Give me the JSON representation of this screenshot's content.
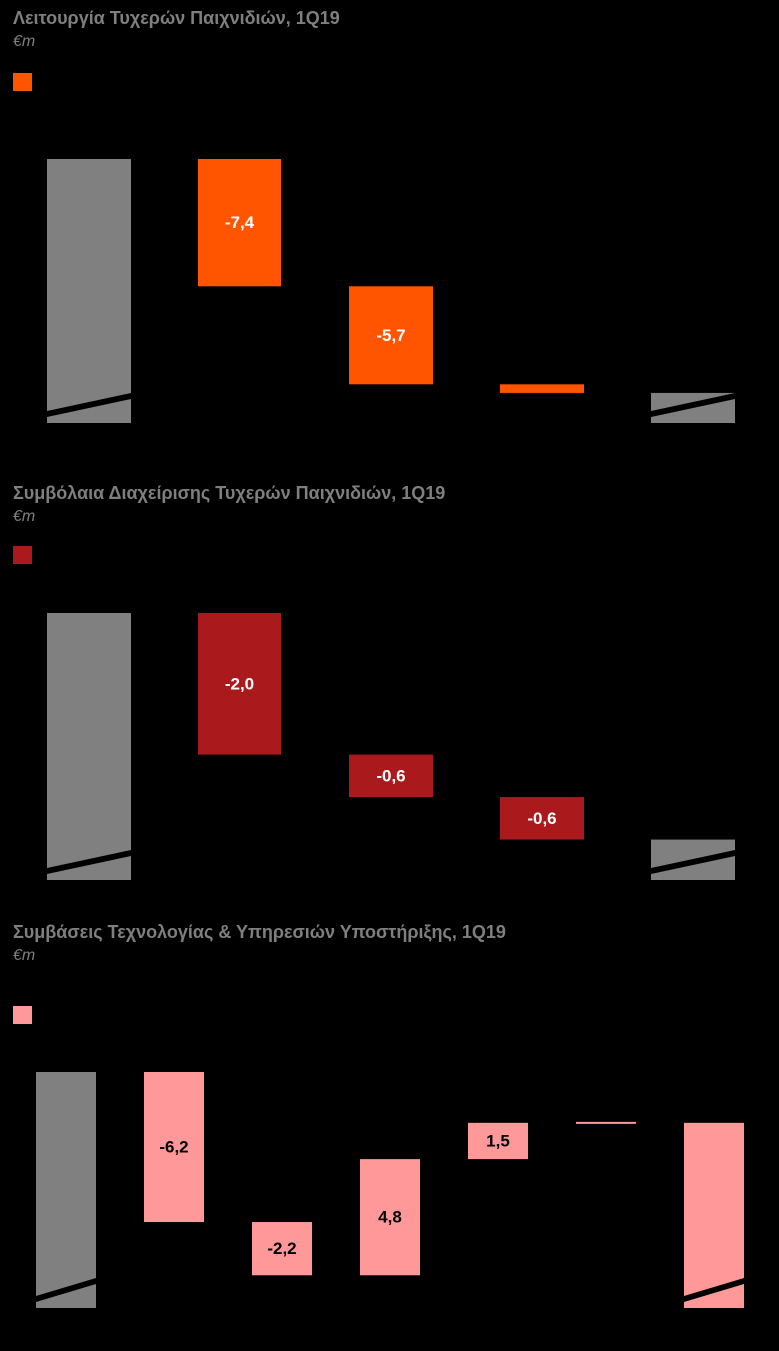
{
  "chart_data": [
    {
      "type": "bar",
      "subtype": "waterfall",
      "title": "Λειτουργία Τυχερών Παιχνιδιών, 1Q19",
      "unit": "€m",
      "color": "#ff5500",
      "total_color": "#808080",
      "label_color": "#ffffff",
      "axis_break": true,
      "steps": [
        {
          "kind": "total",
          "value": null,
          "label": ""
        },
        {
          "kind": "delta",
          "value": -7.4,
          "label": "-7,4"
        },
        {
          "kind": "delta",
          "value": -5.7,
          "label": "-5,7"
        },
        {
          "kind": "delta",
          "value": -0.5,
          "label": ""
        },
        {
          "kind": "total",
          "value": null,
          "label": ""
        }
      ]
    },
    {
      "type": "bar",
      "subtype": "waterfall",
      "title": "Συμβόλαια Διαχείρισης Τυχερών Παιχνιδιών, 1Q19",
      "unit": "€m",
      "color": "#aa1a1c",
      "total_color": "#808080",
      "label_color": "#ffffff",
      "axis_break": true,
      "steps": [
        {
          "kind": "total",
          "value": null,
          "label": ""
        },
        {
          "kind": "delta",
          "value": -2.0,
          "label": "-2,0"
        },
        {
          "kind": "delta",
          "value": -0.6,
          "label": "-0,6"
        },
        {
          "kind": "delta",
          "value": -0.6,
          "label": "-0,6"
        },
        {
          "kind": "total",
          "value": null,
          "label": ""
        }
      ]
    },
    {
      "type": "bar",
      "subtype": "waterfall",
      "title": "Συμβάσεις Τεχνολογίας & Υπηρεσιών Υποστήριξης, 1Q19",
      "unit": "€m",
      "color": "#ff9999",
      "total_color": "#808080",
      "label_color": "#000000",
      "axis_break": true,
      "steps": [
        {
          "kind": "total",
          "value": null,
          "label": ""
        },
        {
          "kind": "delta",
          "value": -6.2,
          "label": "-6,2"
        },
        {
          "kind": "delta",
          "value": -2.2,
          "label": "-2,2"
        },
        {
          "kind": "delta",
          "value": 4.8,
          "label": "4,8"
        },
        {
          "kind": "delta",
          "value": 1.5,
          "label": "1,5"
        },
        {
          "kind": "delta",
          "value": 0.0,
          "label": ""
        },
        {
          "kind": "total",
          "value": null,
          "label": "",
          "highlight": true
        }
      ]
    }
  ]
}
